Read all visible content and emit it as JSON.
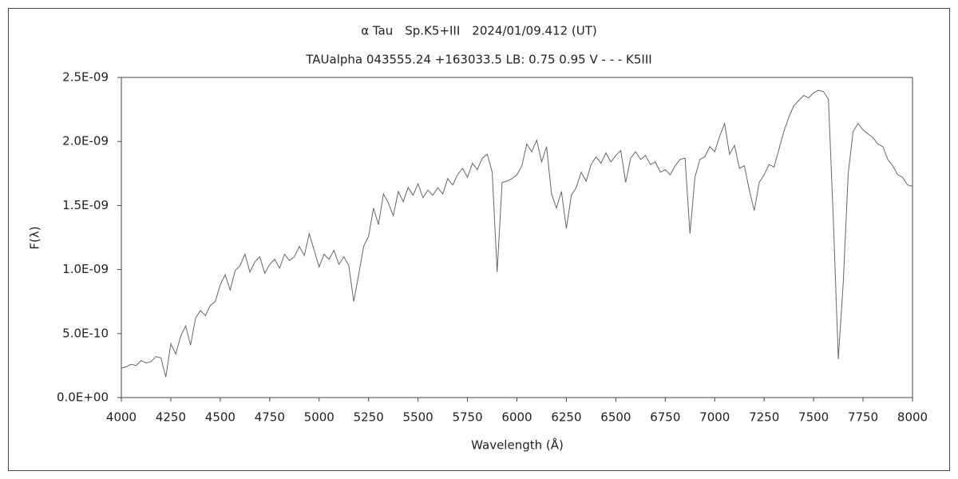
{
  "chart_data": {
    "type": "line",
    "title": "α Tau　Sp.K5+III　2024/01/09.412 (UT)",
    "subtitle": "TAUalpha 043555.24 +163033.5 LB: 0.75 0.95 V - - - K5III",
    "x_label": "Wavelength (Å)",
    "y_label": "F(λ)",
    "xlim": [
      4000,
      8000
    ],
    "ylim": [
      0,
      2.5e-09
    ],
    "xticks": [
      4000,
      4250,
      4500,
      4750,
      5000,
      5250,
      5500,
      5750,
      6000,
      6250,
      6500,
      6750,
      7000,
      7250,
      7500,
      7750,
      8000
    ],
    "yticks": [
      {
        "value": 0,
        "label": "0.0E+00"
      },
      {
        "value": 5e-10,
        "label": "5.0E-10"
      },
      {
        "value": 1e-09,
        "label": "1.0E-09"
      },
      {
        "value": 1.5e-09,
        "label": "1.5E-09"
      },
      {
        "value": 2e-09,
        "label": "2.0E-09"
      },
      {
        "value": 2.5e-09,
        "label": "2.5E-09"
      }
    ],
    "grid": false,
    "x": [
      4000,
      4025,
      4050,
      4075,
      4100,
      4125,
      4150,
      4175,
      4200,
      4225,
      4250,
      4275,
      4300,
      4325,
      4350,
      4375,
      4400,
      4425,
      4450,
      4475,
      4500,
      4525,
      4550,
      4575,
      4600,
      4625,
      4650,
      4675,
      4700,
      4725,
      4750,
      4775,
      4800,
      4825,
      4850,
      4875,
      4900,
      4925,
      4950,
      4975,
      5000,
      5025,
      5050,
      5075,
      5100,
      5125,
      5150,
      5175,
      5200,
      5225,
      5250,
      5275,
      5300,
      5325,
      5350,
      5375,
      5400,
      5425,
      5450,
      5475,
      5500,
      5525,
      5550,
      5575,
      5600,
      5625,
      5650,
      5675,
      5700,
      5725,
      5750,
      5775,
      5800,
      5825,
      5850,
      5875,
      5900,
      5925,
      5950,
      5975,
      6000,
      6025,
      6050,
      6075,
      6100,
      6125,
      6150,
      6175,
      6200,
      6225,
      6250,
      6275,
      6300,
      6325,
      6350,
      6375,
      6400,
      6425,
      6450,
      6475,
      6500,
      6525,
      6550,
      6575,
      6600,
      6625,
      6650,
      6675,
      6700,
      6725,
      6750,
      6775,
      6800,
      6825,
      6850,
      6875,
      6900,
      6925,
      6950,
      6975,
      7000,
      7025,
      7050,
      7075,
      7100,
      7125,
      7150,
      7175,
      7200,
      7225,
      7250,
      7275,
      7300,
      7325,
      7350,
      7375,
      7400,
      7425,
      7450,
      7475,
      7500,
      7525,
      7550,
      7575,
      7600,
      7625,
      7650,
      7675,
      7700,
      7725,
      7750,
      7775,
      7800,
      7825,
      7850,
      7875,
      7900,
      7925,
      7950,
      7975,
      8000
    ],
    "series": [
      {
        "color": "#666666",
        "values": [
          2.3e-10,
          2.4e-10,
          2.6e-10,
          2.5e-10,
          2.9e-10,
          2.7e-10,
          2.8e-10,
          3.2e-10,
          3.1e-10,
          1.6e-10,
          4.2e-10,
          3.4e-10,
          4.8e-10,
          5.6e-10,
          4.1e-10,
          6.2e-10,
          6.8e-10,
          6.4e-10,
          7.2e-10,
          7.5e-10,
          8.8e-10,
          9.6e-10,
          8.4e-10,
          9.9e-10,
          1.03e-09,
          1.12e-09,
          9.8e-10,
          1.06e-09,
          1.1e-09,
          9.7e-10,
          1.04e-09,
          1.08e-09,
          1.01e-09,
          1.12e-09,
          1.07e-09,
          1.1e-09,
          1.18e-09,
          1.11e-09,
          1.28e-09,
          1.15e-09,
          1.02e-09,
          1.12e-09,
          1.08e-09,
          1.15e-09,
          1.04e-09,
          1.1e-09,
          1.03e-09,
          7.5e-10,
          9.6e-10,
          1.18e-09,
          1.26e-09,
          1.48e-09,
          1.35e-09,
          1.59e-09,
          1.52e-09,
          1.42e-09,
          1.61e-09,
          1.53e-09,
          1.64e-09,
          1.58e-09,
          1.67e-09,
          1.56e-09,
          1.62e-09,
          1.58e-09,
          1.64e-09,
          1.59e-09,
          1.71e-09,
          1.66e-09,
          1.74e-09,
          1.79e-09,
          1.72e-09,
          1.83e-09,
          1.78e-09,
          1.87e-09,
          1.9e-09,
          1.76e-09,
          9.8e-10,
          1.68e-09,
          1.69e-09,
          1.71e-09,
          1.74e-09,
          1.81e-09,
          1.98e-09,
          1.92e-09,
          2.01e-09,
          1.84e-09,
          1.96e-09,
          1.59e-09,
          1.48e-09,
          1.61e-09,
          1.32e-09,
          1.58e-09,
          1.64e-09,
          1.76e-09,
          1.69e-09,
          1.82e-09,
          1.88e-09,
          1.83e-09,
          1.91e-09,
          1.84e-09,
          1.89e-09,
          1.93e-09,
          1.68e-09,
          1.87e-09,
          1.92e-09,
          1.86e-09,
          1.89e-09,
          1.82e-09,
          1.84e-09,
          1.76e-09,
          1.78e-09,
          1.74e-09,
          1.81e-09,
          1.86e-09,
          1.87e-09,
          1.28e-09,
          1.72e-09,
          1.86e-09,
          1.88e-09,
          1.96e-09,
          1.92e-09,
          2.04e-09,
          2.14e-09,
          1.9e-09,
          1.97e-09,
          1.79e-09,
          1.81e-09,
          1.62e-09,
          1.46e-09,
          1.68e-09,
          1.74e-09,
          1.82e-09,
          1.8e-09,
          1.94e-09,
          2.08e-09,
          2.19e-09,
          2.28e-09,
          2.32e-09,
          2.36e-09,
          2.34e-09,
          2.38e-09,
          2.4e-09,
          2.39e-09,
          2.33e-09,
          1.38e-09,
          3e-10,
          9e-10,
          1.75e-09,
          2.08e-09,
          2.14e-09,
          2.09e-09,
          2.06e-09,
          2.03e-09,
          1.98e-09,
          1.96e-09,
          1.86e-09,
          1.81e-09,
          1.74e-09,
          1.72e-09,
          1.66e-09,
          1.65e-09
        ]
      }
    ]
  }
}
